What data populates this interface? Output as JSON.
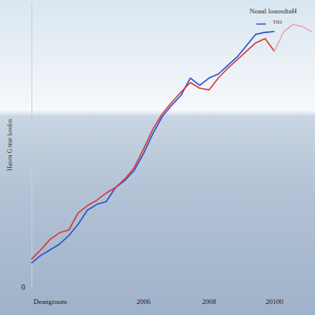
{
  "chart_data": {
    "type": "line",
    "title": "Noaal loaosdtaH",
    "y_label": "Hazen G true koolos",
    "annotation": "TIO",
    "categories": [
      null,
      null,
      "Deangroom",
      null,
      null,
      null,
      null,
      null,
      null,
      null,
      null,
      null,
      "2006",
      null,
      null,
      null,
      null,
      null,
      null,
      "2008",
      null,
      null,
      null,
      null,
      null,
      null,
      "20100",
      null,
      null,
      null,
      null
    ],
    "ylim": [
      0,
      100
    ],
    "yticks": [
      0
    ],
    "grid": false,
    "series": [
      {
        "color": "#2f4fc9",
        "values": [
          8.3,
          11,
          13,
          15,
          18,
          22,
          27,
          29,
          30,
          35,
          37.5,
          41,
          47,
          54,
          60,
          64,
          67.5,
          73.6,
          71,
          73.6,
          75,
          78,
          81,
          85,
          89,
          89.7,
          90,
          null,
          null,
          null,
          null
        ]
      },
      {
        "color": "#d63a3a",
        "values": [
          9.7,
          13,
          16.7,
          19,
          20,
          26,
          28.6,
          30.5,
          33,
          35,
          38,
          42,
          48.6,
          55.6,
          61,
          65,
          68.6,
          72,
          70,
          69.4,
          73.6,
          77,
          80,
          83,
          86,
          87.5,
          83,
          null,
          null,
          null,
          null
        ]
      },
      {
        "color": "#e6a9ad",
        "values": [
          null,
          null,
          null,
          null,
          null,
          null,
          null,
          null,
          null,
          null,
          null,
          null,
          null,
          null,
          null,
          null,
          null,
          null,
          null,
          null,
          null,
          null,
          null,
          null,
          null,
          null,
          83,
          90,
          92.5,
          91.7,
          90
        ]
      }
    ]
  }
}
